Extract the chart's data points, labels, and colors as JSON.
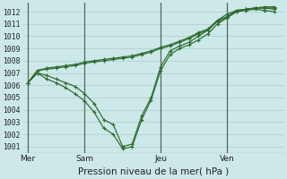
{
  "xlabel": "Pression niveau de la mer( hPa )",
  "background_color": "#cce8e8",
  "grid_color": "#aacece",
  "line_color": "#2d6a2d",
  "axis_color": "#4a6a4a",
  "ylim": [
    1000.5,
    1012.7
  ],
  "yticks": [
    1001,
    1002,
    1003,
    1004,
    1005,
    1006,
    1007,
    1008,
    1009,
    1010,
    1011,
    1012
  ],
  "xtick_labels": [
    "Mer",
    "Sam",
    "Jeu",
    "Ven"
  ],
  "xtick_positions": [
    0,
    6,
    14,
    21
  ],
  "xlim": [
    -0.5,
    27
  ],
  "n_xgrid": 27,
  "series": [
    [
      1006.2,
      1007.0,
      1006.8,
      1006.5,
      1006.2,
      1005.9,
      1005.3,
      1004.5,
      1003.2,
      1002.8,
      1001.0,
      1001.2,
      1003.5,
      1005.0,
      1007.5,
      1008.8,
      1009.2,
      1009.5,
      1010.0,
      1010.5,
      1011.3,
      1011.8,
      1012.1,
      1012.2,
      1012.3,
      1012.3,
      1012.2
    ],
    [
      1006.2,
      1007.0,
      1006.5,
      1006.2,
      1005.8,
      1005.3,
      1004.7,
      1003.8,
      1002.5,
      1002.0,
      1000.8,
      1001.0,
      1003.2,
      1004.8,
      1007.2,
      1008.5,
      1009.0,
      1009.3,
      1009.7,
      1010.2,
      1011.0,
      1011.5,
      1012.0,
      1012.1,
      1012.2,
      1012.1,
      1012.0
    ],
    [
      1006.2,
      1007.2,
      1007.3,
      1007.4,
      1007.5,
      1007.6,
      1007.8,
      1007.9,
      1008.0,
      1008.1,
      1008.2,
      1008.3,
      1008.5,
      1008.7,
      1009.0,
      1009.2,
      1009.5,
      1009.8,
      1010.2,
      1010.5,
      1011.2,
      1011.5,
      1012.0,
      1012.2,
      1012.3,
      1012.3,
      1012.3
    ],
    [
      1006.2,
      1007.2,
      1007.4,
      1007.5,
      1007.6,
      1007.7,
      1007.9,
      1008.0,
      1008.1,
      1008.2,
      1008.3,
      1008.4,
      1008.6,
      1008.8,
      1009.1,
      1009.3,
      1009.6,
      1009.9,
      1010.3,
      1010.6,
      1011.3,
      1011.6,
      1012.1,
      1012.2,
      1012.3,
      1012.4,
      1012.4
    ]
  ]
}
